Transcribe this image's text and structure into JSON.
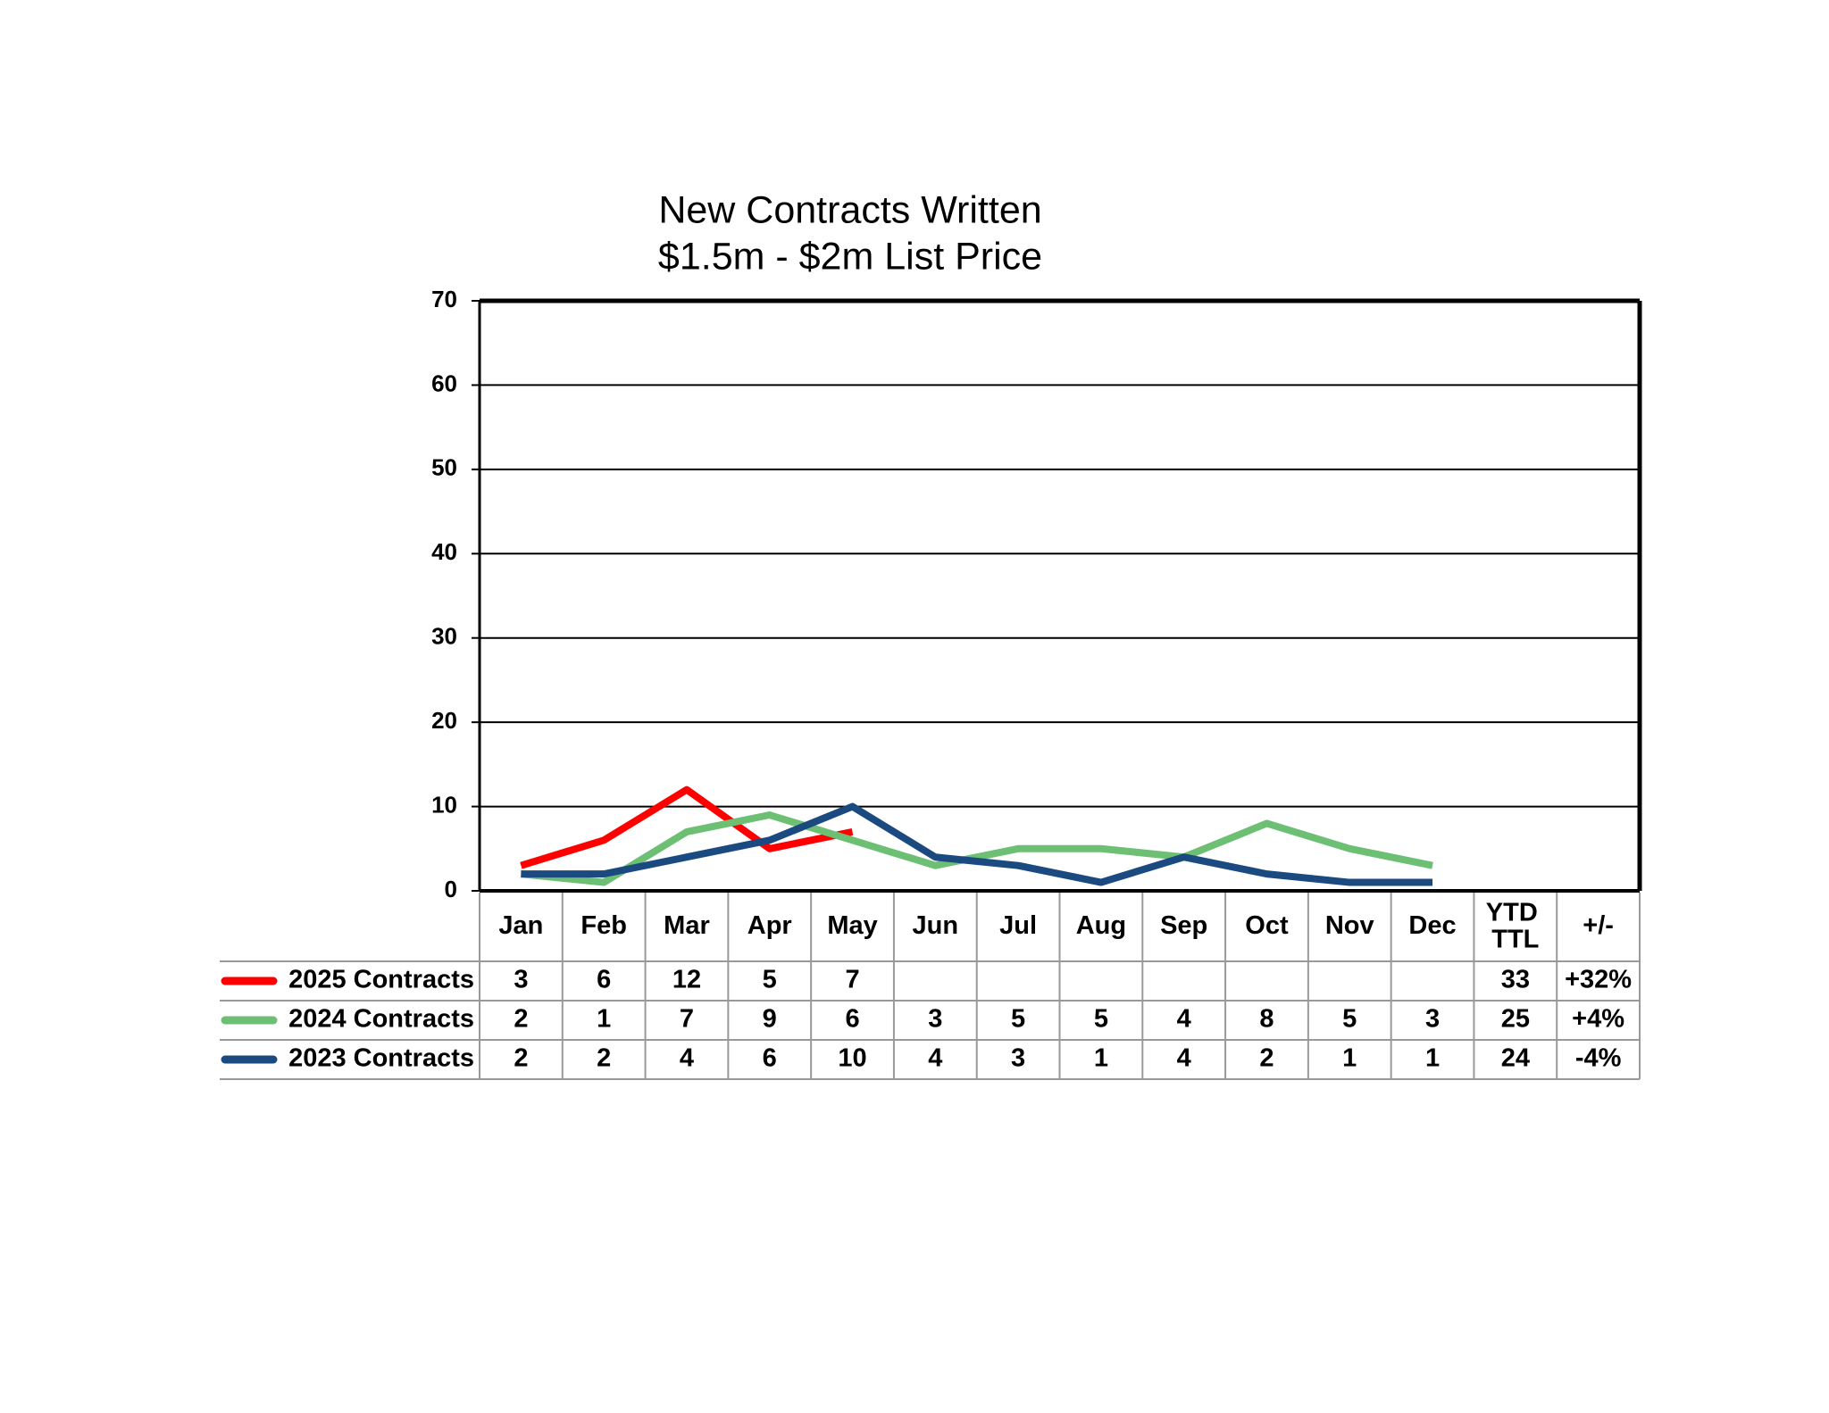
{
  "chart_data": {
    "type": "line",
    "title": "New Contracts Written",
    "subtitle": "$1.5m - $2m List Price",
    "categories": [
      "Jan",
      "Feb",
      "Mar",
      "Apr",
      "May",
      "Jun",
      "Jul",
      "Aug",
      "Sep",
      "Oct",
      "Nov",
      "Dec"
    ],
    "total_header": "YTD TTL",
    "change_header": "+/-",
    "series": [
      {
        "name": "2025 Contracts",
        "color": "#ff0000",
        "values": [
          3,
          6,
          12,
          5,
          7,
          null,
          null,
          null,
          null,
          null,
          null,
          null
        ],
        "ytd_total": 33,
        "change": "+32%"
      },
      {
        "name": "2024 Contracts",
        "color": "#6dbf73",
        "values": [
          2,
          1,
          7,
          9,
          6,
          3,
          5,
          5,
          4,
          8,
          5,
          3
        ],
        "ytd_total": 25,
        "change": "+4%"
      },
      {
        "name": "2023 Contracts",
        "color": "#1a4a80",
        "values": [
          2,
          2,
          4,
          6,
          10,
          4,
          3,
          1,
          4,
          2,
          1,
          1
        ],
        "ytd_total": 24,
        "change": "-4%"
      }
    ],
    "ylim": [
      0,
      70
    ],
    "yticks": [
      0,
      10,
      20,
      30,
      40,
      50,
      60,
      70
    ],
    "grid": true
  }
}
